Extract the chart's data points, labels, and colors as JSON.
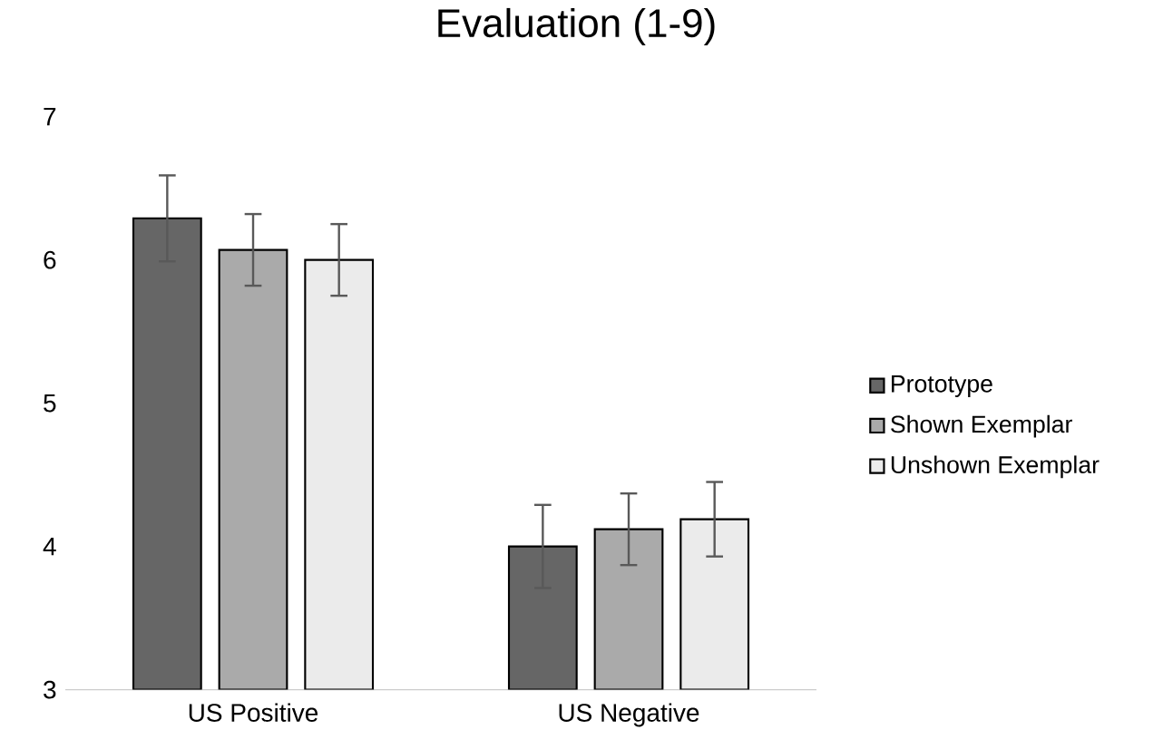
{
  "chart_data": {
    "type": "bar",
    "title": "Evaluation (1-9)",
    "categories": [
      "US Positive",
      "US Negative"
    ],
    "series": [
      {
        "name": "Prototype",
        "color": "#666666",
        "values": [
          6.29,
          4.0
        ],
        "errors": [
          0.3,
          0.29
        ]
      },
      {
        "name": "Shown Exemplar",
        "color": "#aaaaaa",
        "values": [
          6.07,
          4.12
        ],
        "errors": [
          0.25,
          0.25
        ]
      },
      {
        "name": "Unshown Exemplar",
        "color": "#ebebeb",
        "values": [
          6.0,
          4.19
        ],
        "errors": [
          0.25,
          0.26
        ]
      }
    ],
    "ylim": [
      3,
      7
    ],
    "yticks": [
      3,
      4,
      5,
      6,
      7
    ],
    "legend": "right"
  }
}
